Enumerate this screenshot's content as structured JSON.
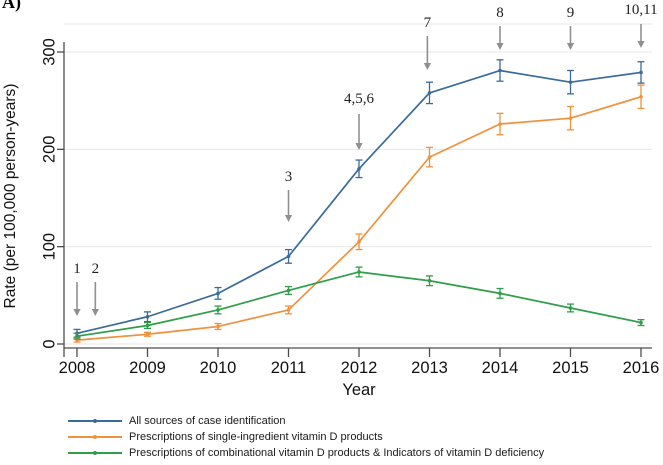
{
  "panel_label": "A)",
  "chart_data": {
    "type": "line",
    "title": "",
    "xlabel": "Year",
    "ylabel": "Rate (per 100,000 person-years)",
    "x": [
      2008,
      2009,
      2010,
      2011,
      2012,
      2013,
      2014,
      2015,
      2016
    ],
    "x_tick_labels": [
      "2008",
      "2009",
      "2010",
      "2011",
      "2012",
      "2013",
      "2014",
      "2015",
      "2016"
    ],
    "y_ticks": [
      0,
      100,
      200,
      300
    ],
    "ylim": [
      0,
      330
    ],
    "grid": "horizontal",
    "legend_position": "bottom",
    "error_bars": true,
    "series": [
      {
        "name": "All sources of case identification",
        "color": "#3a6b9b",
        "values": [
          11,
          28,
          52,
          90,
          180,
          258,
          281,
          269,
          279
        ],
        "errors": [
          4,
          5,
          6,
          7,
          9,
          11,
          11,
          12,
          11
        ]
      },
      {
        "name": "Prescriptions of single-ingredient vitamin D products",
        "color": "#f0913e",
        "values": [
          4,
          10,
          18,
          35,
          105,
          192,
          226,
          232,
          254
        ],
        "errors": [
          2,
          2,
          3,
          4,
          8,
          10,
          11,
          12,
          12
        ]
      },
      {
        "name": "Prescriptions of combinational vitamin D products & Indicators of vitamin D deficiency",
        "color": "#2f9e48",
        "values": [
          8,
          19,
          35,
          55,
          74,
          65,
          52,
          37,
          22
        ],
        "errors": [
          3,
          3,
          4,
          4,
          5,
          5,
          5,
          4,
          3
        ]
      }
    ],
    "annotations": [
      {
        "label": "1",
        "year": 2008.0,
        "label_y": 268,
        "arrow_from": 282,
        "arrow_to": 316
      },
      {
        "label": "2",
        "year": 2008.26,
        "label_y": 268,
        "arrow_from": 282,
        "arrow_to": 316
      },
      {
        "label": "3",
        "year": 2011.0,
        "label_y": 176,
        "arrow_from": 190,
        "arrow_to": 222
      },
      {
        "label": "4,5,6",
        "year": 2012.0,
        "label_y": 98,
        "arrow_from": 114,
        "arrow_to": 150
      },
      {
        "label": "7",
        "year": 2012.97,
        "label_y": 22,
        "arrow_from": 36,
        "arrow_to": 70
      },
      {
        "label": "8",
        "year": 2014.0,
        "label_y": 12,
        "arrow_from": 26,
        "arrow_to": 50
      },
      {
        "label": "9",
        "year": 2015.0,
        "label_y": 12,
        "arrow_from": 26,
        "arrow_to": 50
      },
      {
        "label": "10,11",
        "year": 2016.0,
        "label_y": 9,
        "arrow_from": 24,
        "arrow_to": 48
      }
    ],
    "annotation_color": "#8f8f8f"
  }
}
